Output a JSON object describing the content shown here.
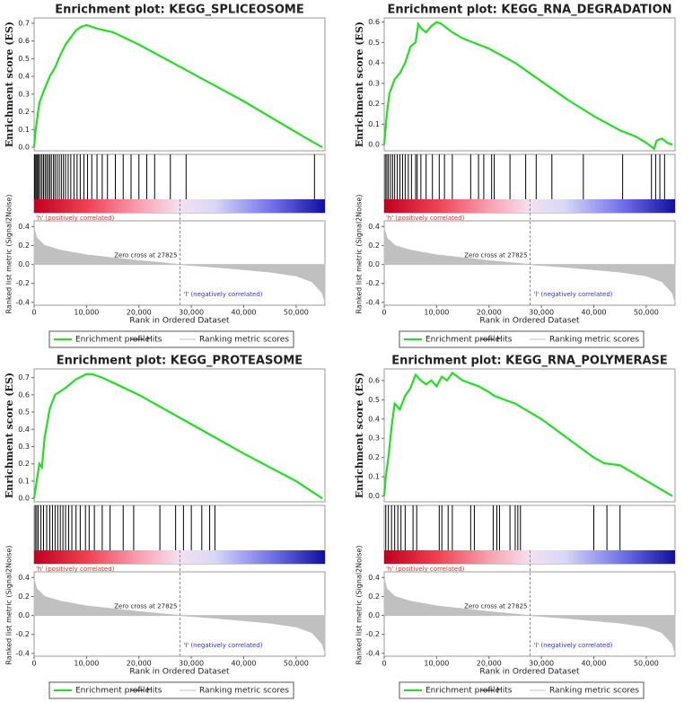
{
  "chart_data": [
    {
      "type": "gsea",
      "title": "Enrichment plot: KEGG_SPLICEOSOME",
      "ylabel": "Enrichment score (ES)",
      "y2label": "Ranked list metric (Signal2Noise)",
      "xlabel": "Rank in Ordered Dataset",
      "xlim": [
        0,
        55500
      ],
      "xticks": [
        0,
        {
          "value": 10000,
          "label": "10,000"
        },
        {
          "value": 20000,
          "label": "20,000"
        },
        {
          "value": 30000,
          "label": "30,000"
        },
        {
          "value": 40000,
          "label": "40,000"
        },
        {
          "value": 50000,
          "label": "50,000"
        }
      ],
      "ylim": [
        -0.02,
        0.73
      ],
      "yticks": [
        {
          "value": 0,
          "label": "0.0"
        },
        0.1,
        0.2,
        0.3,
        0.4,
        0.5,
        0.6,
        0.7
      ],
      "y2lim": [
        -0.43,
        0.46
      ],
      "y2ticks": [
        0.4,
        0.2,
        {
          "value": 0,
          "label": "0.0"
        },
        -0.2,
        -0.4
      ],
      "zero_cross": 27825,
      "zero_cross_label": "Zero cross at 27825",
      "positive_label": "'h' (positively correlated)",
      "negative_label": "'l' (negatively correlated)",
      "series": [
        {
          "name": "Enrichment profile",
          "color": "#22dd22",
          "x": [
            0,
            300,
            1000,
            2000,
            3000,
            4000,
            5000,
            6000,
            7000,
            8000,
            9000,
            10000,
            12000,
            15000,
            20000,
            30000,
            40000,
            48000,
            52000,
            55000
          ],
          "values": [
            0,
            0.1,
            0.25,
            0.33,
            0.4,
            0.45,
            0.52,
            0.58,
            0.62,
            0.66,
            0.68,
            0.69,
            0.67,
            0.65,
            0.58,
            0.42,
            0.26,
            0.12,
            0.05,
            0
          ]
        },
        {
          "name": "Hits",
          "color": "#000000",
          "values": [
            100,
            300,
            500,
            700,
            900,
            1200,
            1500,
            1800,
            2100,
            2400,
            2700,
            3000,
            3300,
            3700,
            4000,
            4400,
            4800,
            5200,
            5600,
            6000,
            6500,
            7000,
            7600,
            8200,
            8800,
            9500,
            10200,
            11000,
            12000,
            13000,
            14000,
            15500,
            17000,
            18500,
            20000,
            21500,
            23000,
            26000,
            29000,
            53500
          ]
        },
        {
          "name": "Ranking metric scores",
          "color": "#c0c0c0",
          "x": [
            0,
            500,
            2000,
            5000,
            10000,
            20000,
            27825,
            35000,
            45000,
            50000,
            53000,
            55000,
            55500
          ],
          "values": [
            0.38,
            0.28,
            0.2,
            0.15,
            0.1,
            0.04,
            0,
            -0.03,
            -0.08,
            -0.12,
            -0.18,
            -0.3,
            -0.4
          ]
        }
      ]
    },
    {
      "type": "gsea",
      "title": "Enrichment plot: KEGG_RNA_DEGRADATION",
      "ylabel": "Enrichment score (ES)",
      "y2label": "Ranked list metric (Signal2Noise)",
      "xlabel": "Rank in Ordered Dataset",
      "xlim": [
        0,
        55500
      ],
      "xticks": [
        0,
        {
          "value": 10000,
          "label": "10,000"
        },
        {
          "value": 20000,
          "label": "20,000"
        },
        {
          "value": 30000,
          "label": "30,000"
        },
        {
          "value": 40000,
          "label": "40,000"
        },
        {
          "value": 50000,
          "label": "50,000"
        }
      ],
      "ylim": [
        -0.03,
        0.62
      ],
      "yticks": [
        {
          "value": 0,
          "label": "0.0"
        },
        0.1,
        0.2,
        0.3,
        0.4,
        0.5,
        0.6
      ],
      "y2lim": [
        -0.43,
        0.46
      ],
      "y2ticks": [
        0.4,
        0.2,
        {
          "value": 0,
          "label": "0.0"
        },
        -0.2,
        -0.4
      ],
      "zero_cross": 27825,
      "zero_cross_label": "Zero cross at 27825",
      "positive_label": "'h' (positively correlated)",
      "negative_label": "'l' (negatively correlated)",
      "series": [
        {
          "name": "Enrichment profile",
          "color": "#22dd22",
          "x": [
            0,
            500,
            1000,
            2000,
            3000,
            4000,
            5000,
            6000,
            6500,
            7000,
            8000,
            9000,
            10000,
            11000,
            13000,
            15000,
            20000,
            25000,
            30000,
            35000,
            40000,
            45000,
            48000,
            50000,
            51500,
            52000,
            53000,
            54000,
            55000
          ],
          "values": [
            0,
            0.15,
            0.25,
            0.32,
            0.35,
            0.4,
            0.48,
            0.5,
            0.59,
            0.57,
            0.55,
            0.58,
            0.6,
            0.59,
            0.55,
            0.52,
            0.47,
            0.4,
            0.31,
            0.22,
            0.14,
            0.07,
            0.04,
            0.01,
            -0.02,
            0.02,
            0.03,
            0.01,
            0
          ]
        },
        {
          "name": "Hits",
          "color": "#000000",
          "values": [
            200,
            500,
            800,
            1200,
            1600,
            2000,
            2500,
            3000,
            3500,
            4000,
            4600,
            5200,
            6000,
            6300,
            7000,
            8000,
            9200,
            10500,
            11500,
            13000,
            16500,
            18000,
            19000,
            20500,
            21000,
            24000,
            27000,
            29000,
            32000,
            38000,
            45500,
            51000,
            51800,
            52600,
            53500
          ]
        },
        {
          "name": "Ranking metric scores",
          "color": "#c0c0c0",
          "x": [
            0,
            500,
            2000,
            5000,
            10000,
            20000,
            27825,
            35000,
            45000,
            50000,
            53000,
            55000,
            55500
          ],
          "values": [
            0.38,
            0.28,
            0.2,
            0.15,
            0.1,
            0.04,
            0,
            -0.03,
            -0.08,
            -0.12,
            -0.18,
            -0.3,
            -0.4
          ]
        }
      ]
    },
    {
      "type": "gsea",
      "title": "Enrichment plot: KEGG_PROTEASOME",
      "ylabel": "Enrichment score (ES)",
      "y2label": "Ranked list metric (Signal2Noise)",
      "xlabel": "Rank in Ordered Dataset",
      "xlim": [
        0,
        55500
      ],
      "xticks": [
        0,
        {
          "value": 10000,
          "label": "10,000"
        },
        {
          "value": 20000,
          "label": "20,000"
        },
        {
          "value": 30000,
          "label": "30,000"
        },
        {
          "value": 40000,
          "label": "40,000"
        },
        {
          "value": 50000,
          "label": "50,000"
        }
      ],
      "ylim": [
        -0.02,
        0.75
      ],
      "yticks": [
        {
          "value": 0,
          "label": "0.0"
        },
        0.1,
        0.2,
        0.3,
        0.4,
        0.5,
        0.6,
        0.7
      ],
      "y2lim": [
        -0.43,
        0.46
      ],
      "y2ticks": [
        0.4,
        0.2,
        {
          "value": 0,
          "label": "0.0"
        },
        -0.2,
        -0.4
      ],
      "zero_cross": 27825,
      "zero_cross_label": "Zero cross at 27825",
      "positive_label": "'h' (positively correlated)",
      "negative_label": "'l' (negatively correlated)",
      "series": [
        {
          "name": "Enrichment profile",
          "color": "#22dd22",
          "x": [
            0,
            500,
            1000,
            1500,
            2000,
            3000,
            4000,
            5000,
            6000,
            8000,
            10000,
            11000,
            13000,
            20000,
            30000,
            40000,
            50000,
            55000
          ],
          "values": [
            0,
            0.1,
            0.2,
            0.18,
            0.35,
            0.52,
            0.6,
            0.62,
            0.64,
            0.69,
            0.72,
            0.72,
            0.7,
            0.6,
            0.43,
            0.26,
            0.1,
            0
          ]
        },
        {
          "name": "Hits",
          "color": "#000000",
          "values": [
            200,
            500,
            800,
            1300,
            1800,
            2400,
            3000,
            3500,
            4000,
            4500,
            5000,
            5500,
            6000,
            6600,
            7200,
            8000,
            8800,
            9800,
            10500,
            11500,
            13000,
            14500,
            17000,
            19000,
            24000,
            27000,
            28500,
            30000,
            32000,
            33500,
            34500
          ]
        },
        {
          "name": "Ranking metric scores",
          "color": "#c0c0c0",
          "x": [
            0,
            500,
            2000,
            5000,
            10000,
            20000,
            27825,
            35000,
            45000,
            50000,
            53000,
            55000,
            55500
          ],
          "values": [
            0.38,
            0.28,
            0.2,
            0.15,
            0.1,
            0.04,
            0,
            -0.03,
            -0.08,
            -0.12,
            -0.18,
            -0.3,
            -0.4
          ]
        }
      ]
    },
    {
      "type": "gsea",
      "title": "Enrichment plot: KEGG_RNA_POLYMERASE",
      "ylabel": "Enrichment score (ES)",
      "y2label": "Ranked list metric (Signal2Noise)",
      "xlabel": "Rank in Ordered Dataset",
      "xlim": [
        0,
        55500
      ],
      "xticks": [
        0,
        {
          "value": 10000,
          "label": "10,000"
        },
        {
          "value": 20000,
          "label": "20,000"
        },
        {
          "value": 30000,
          "label": "30,000"
        },
        {
          "value": 40000,
          "label": "40,000"
        },
        {
          "value": 50000,
          "label": "50,000"
        }
      ],
      "ylim": [
        -0.03,
        0.66
      ],
      "yticks": [
        {
          "value": 0,
          "label": "0.0"
        },
        0.1,
        0.2,
        0.3,
        0.4,
        0.5,
        0.6
      ],
      "y2lim": [
        -0.43,
        0.46
      ],
      "y2ticks": [
        0.4,
        0.2,
        {
          "value": 0,
          "label": "0.0"
        },
        -0.2,
        -0.4
      ],
      "zero_cross": 27825,
      "zero_cross_label": "Zero cross at 27825",
      "positive_label": "'h' (positively correlated)",
      "negative_label": "'l' (negatively correlated)",
      "series": [
        {
          "name": "Enrichment profile",
          "color": "#22dd22",
          "x": [
            0,
            300,
            800,
            1500,
            2000,
            3000,
            4000,
            5000,
            6000,
            7000,
            8000,
            9000,
            10000,
            11000,
            12000,
            13000,
            15000,
            18000,
            20000,
            21000,
            25000,
            30000,
            35000,
            40000,
            42000,
            45000,
            50000,
            55000
          ],
          "values": [
            0,
            0.1,
            0.2,
            0.38,
            0.48,
            0.45,
            0.52,
            0.56,
            0.63,
            0.6,
            0.58,
            0.6,
            0.57,
            0.62,
            0.6,
            0.64,
            0.6,
            0.57,
            0.54,
            0.52,
            0.48,
            0.4,
            0.3,
            0.2,
            0.17,
            0.16,
            0.08,
            0
          ]
        },
        {
          "name": "Hits",
          "color": "#000000",
          "values": [
            300,
            800,
            1400,
            2000,
            2600,
            3200,
            4000,
            5500,
            6200,
            10500,
            11000,
            12200,
            13000,
            16500,
            17200,
            20800,
            21500,
            22000,
            24000,
            25000,
            25500,
            26000,
            40000,
            42500,
            45000
          ]
        },
        {
          "name": "Ranking metric scores",
          "color": "#c0c0c0",
          "x": [
            0,
            500,
            2000,
            5000,
            10000,
            20000,
            27825,
            35000,
            45000,
            50000,
            53000,
            55000,
            55500
          ],
          "values": [
            0.38,
            0.28,
            0.2,
            0.15,
            0.1,
            0.04,
            0,
            -0.03,
            -0.08,
            -0.12,
            -0.18,
            -0.3,
            -0.4
          ]
        }
      ]
    }
  ]
}
